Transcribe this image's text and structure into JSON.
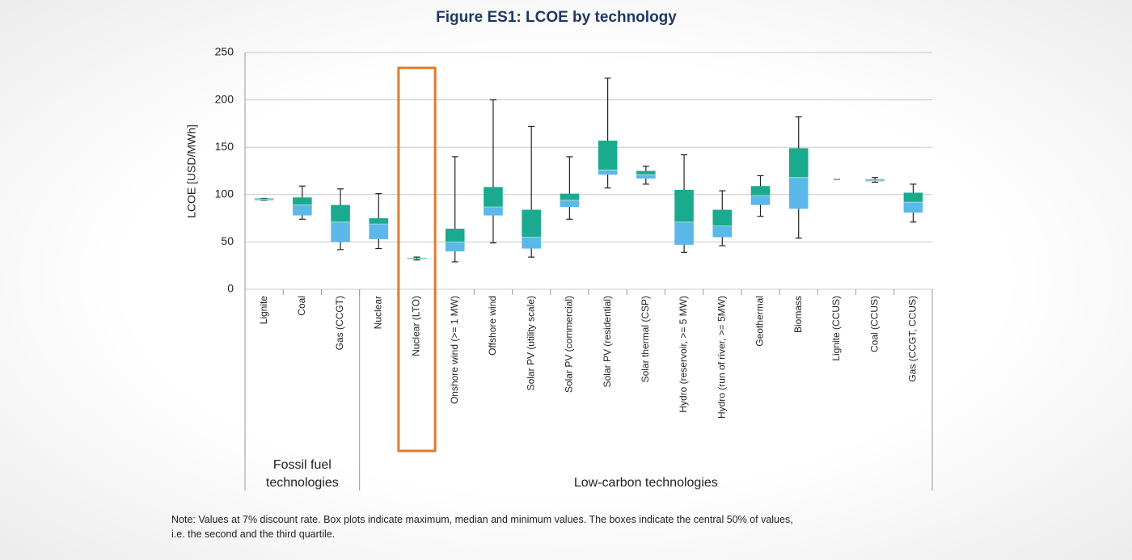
{
  "chart_data": {
    "type": "box",
    "title": "Figure ES1: LCOE by technology",
    "y_label": "LCOE [USD/MWh]",
    "categories": [
      "Lignite",
      "Coal",
      "Gas (CCGT)",
      "Nuclear",
      "Nuclear (LTO)",
      "Onshore wind (>= 1 MW)",
      "Offshore wind",
      "Solar PV (utility scale)",
      "Solar PV (commercial)",
      "Solar PV (residential)",
      "Solar thermal (CSP)",
      "Hydro (reservoir, >= 5 MW)",
      "Hydro (run of river, >= 5MW)",
      "Geothermal",
      "Biomass",
      "Lignite (CCUS)",
      "Coal (CCUS)",
      "Gas (CCGT, CCUS)"
    ],
    "boxes": [
      {
        "min": 94,
        "q1": 94,
        "median": 95,
        "q3": 96,
        "max": 96
      },
      {
        "min": 74,
        "q1": 78,
        "median": 89,
        "q3": 97,
        "max": 109
      },
      {
        "min": 42,
        "q1": 50,
        "median": 71,
        "q3": 89,
        "max": 106
      },
      {
        "min": 43,
        "q1": 53,
        "median": 69,
        "q3": 75,
        "max": 101
      },
      {
        "min": 31,
        "q1": 32,
        "median": 32,
        "q3": 33,
        "max": 34
      },
      {
        "min": 29,
        "q1": 40,
        "median": 50,
        "q3": 64,
        "max": 140
      },
      {
        "min": 49,
        "q1": 78,
        "median": 87,
        "q3": 108,
        "max": 200
      },
      {
        "min": 34,
        "q1": 43,
        "median": 55,
        "q3": 84,
        "max": 172
      },
      {
        "min": 74,
        "q1": 87,
        "median": 94,
        "q3": 101,
        "max": 140
      },
      {
        "min": 107,
        "q1": 121,
        "median": 126,
        "q3": 157,
        "max": 223
      },
      {
        "min": 111,
        "q1": 117,
        "median": 121,
        "q3": 125,
        "max": 130
      },
      {
        "min": 39,
        "q1": 47,
        "median": 71,
        "q3": 105,
        "max": 142
      },
      {
        "min": 46,
        "q1": 55,
        "median": 67,
        "q3": 84,
        "max": 104
      },
      {
        "min": 77,
        "q1": 89,
        "median": 99,
        "q3": 109,
        "max": 120
      },
      {
        "min": 54,
        "q1": 85,
        "median": 118,
        "q3": 149,
        "max": 182
      },
      {
        "min": 116,
        "q1": 116,
        "median": 116,
        "q3": 116,
        "max": 116
      },
      {
        "min": 113,
        "q1": 114,
        "median": 115,
        "q3": 116,
        "max": 118
      },
      {
        "min": 71,
        "q1": 81,
        "median": 92,
        "q3": 102,
        "max": 111
      }
    ],
    "lower_color": "#5bb8e8",
    "upper_color": "#1aaa8e",
    "ylim": [
      0,
      250
    ],
    "yticks": [
      0,
      50,
      100,
      150,
      200,
      250
    ],
    "grid": true,
    "groups": [
      {
        "label": [
          "Fossil fuel",
          "technologies"
        ],
        "categories": 3
      },
      {
        "label": [
          "Low-carbon technologies"
        ],
        "categories": 15
      }
    ],
    "highlight": {
      "category": "Nuclear (LTO)",
      "color": "#e07b2a"
    },
    "note": [
      "Note: Values at 7% discount rate. Box plots indicate maximum, median and minimum values. The boxes indicate the central 50% of values,",
      "i.e. the second and the third quartile."
    ]
  }
}
